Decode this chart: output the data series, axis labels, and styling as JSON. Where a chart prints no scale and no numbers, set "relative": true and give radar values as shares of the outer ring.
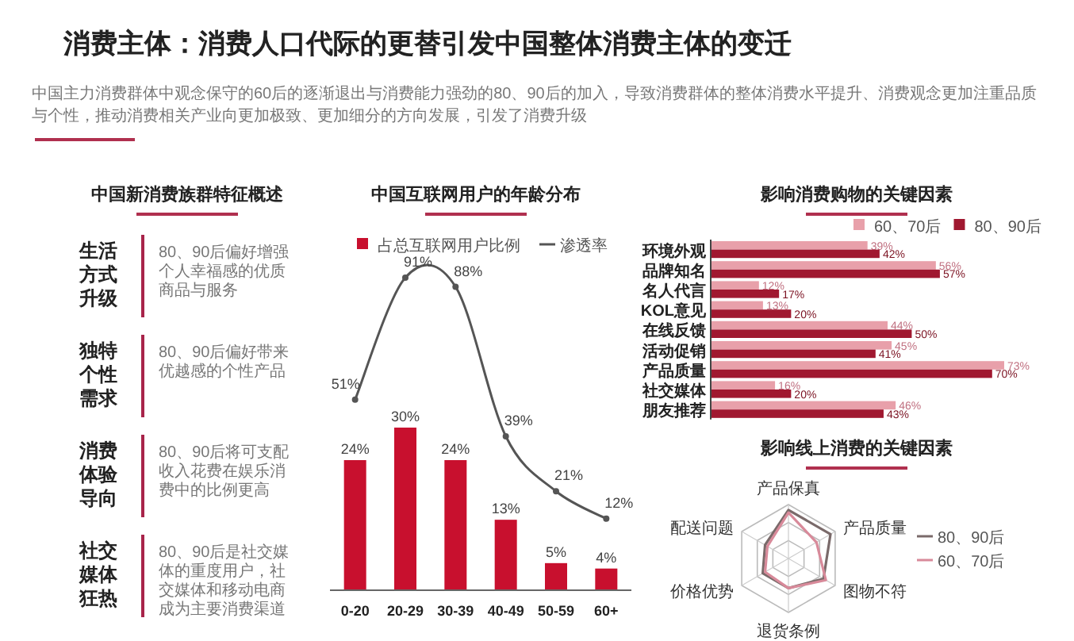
{
  "chart_data": [
    {
      "type": "other",
      "title": "消费主体：消费人口代际的更替引发中国整体消费主体的变迁",
      "subtitle": "中国主力消费群体中观念保守的60后的逐渐退出与消费能力强劲的80、90后的加入，导致消费群体的整体消费水平提升、消费观念更加注重品质与个性，推动消费相关产业向更加极致、更加细分的方向发展，引发了消费升级",
      "xlabel": "中国新消费族群特征概述",
      "annotations": [
        "生活方式升级",
        "80、90后偏好增强个人幸福感的优质商品与服务",
        "独特个性需求",
        "80、90后偏好带来优越感的个性产品",
        "消费体验导向",
        "80、90后将可支配收入花费在娱乐消费中的比例更高",
        "社交媒体狂热",
        "80、90后是社交媒体的重度用户，社交媒体和移动电商成为主要消费渠道"
      ]
    },
    {
      "type": "bar",
      "title": "中国互联网用户的年龄分布",
      "categories": [
        "0-20",
        "20-29",
        "30-39",
        "40-49",
        "50-59",
        "60+"
      ],
      "legend": "top",
      "marker": "circle",
      "series": [
        {
          "name": "占总互联网用户比例",
          "type": "bar",
          "color": "#c8102e",
          "values": [
            24,
            30,
            24,
            13,
            5,
            4
          ],
          "value_labels": [
            "24%",
            "30%",
            "24%",
            "13%",
            "5%",
            "4%"
          ]
        },
        {
          "name": "渗透率",
          "type": "line",
          "axis": "y2",
          "color": "#555555",
          "values": [
            51,
            91,
            88,
            39,
            21,
            12
          ],
          "value_labels": [
            "51%",
            "91%",
            "88%",
            "39%",
            "21%",
            "12%"
          ]
        }
      ]
    },
    {
      "type": "bar",
      "title": "影响消费购物的关键因素",
      "orientation": "horizontal",
      "legend": "top right",
      "categories": [
        "环境外观",
        "品牌知名",
        "名人代言",
        "KOL意见",
        "在线反馈",
        "活动促销",
        "产品质量",
        "社交媒体",
        "朋友推荐"
      ],
      "series": [
        {
          "name": "60、70后",
          "color": "#e8a0aa",
          "values": [
            39,
            56,
            12,
            13,
            44,
            45,
            73,
            16,
            46
          ],
          "value_labels": [
            "39%",
            "56%",
            "12%",
            "13%",
            "44%",
            "45%",
            "73%",
            "16%",
            "46%"
          ]
        },
        {
          "name": "80、90后",
          "color": "#a01830",
          "values": [
            42,
            57,
            17,
            20,
            50,
            41,
            70,
            20,
            43
          ],
          "value_labels": [
            "42%",
            "57%",
            "17%",
            "20%",
            "50%",
            "41%",
            "70%",
            "20%",
            "43%"
          ]
        }
      ]
    },
    {
      "type": "radar",
      "title": "影响线上消费的关键因素",
      "relative": true,
      "legend": "right",
      "categories": [
        "产品保真",
        "产品质量",
        "图物不符",
        "退货条例",
        "价格优势",
        "配送问题"
      ],
      "series": [
        {
          "name": "80、90后",
          "color": "#7a6a6a",
          "values": [
            0.9,
            0.9,
            0.75,
            0.55,
            0.55,
            0.5
          ]
        },
        {
          "name": "60、70后",
          "color": "#d88a9a",
          "values": [
            0.85,
            0.6,
            0.8,
            0.55,
            0.5,
            0.45
          ]
        }
      ]
    }
  ]
}
